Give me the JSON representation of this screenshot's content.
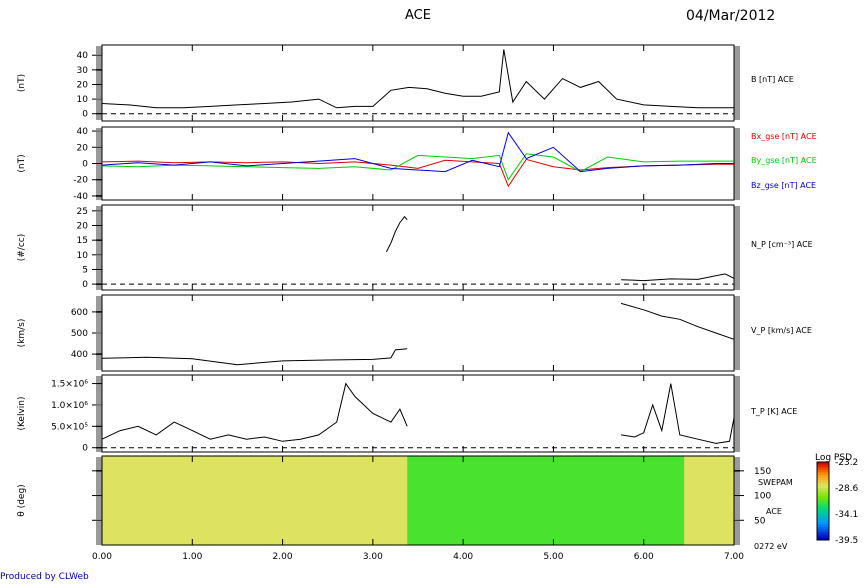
{
  "header": {
    "title": "ACE",
    "date": "04/Mar/2012"
  },
  "footer": {
    "credit": "Produced by CLWeb"
  },
  "chart_data": [
    {
      "type": "line",
      "ylabel": "(nT)",
      "ylim": [
        -5,
        47
      ],
      "yticks": [
        0,
        10,
        20,
        30,
        40
      ],
      "ytick_labels": [
        "0",
        "10",
        "20",
        "30",
        "40"
      ],
      "zero_line": true,
      "x": [
        0.0,
        0.3,
        0.6,
        0.9,
        1.2,
        1.5,
        1.8,
        2.1,
        2.4,
        2.6,
        2.8,
        3.0,
        3.2,
        3.4,
        3.6,
        3.8,
        4.0,
        4.2,
        4.4,
        4.45,
        4.55,
        4.7,
        4.9,
        5.1,
        5.3,
        5.5,
        5.7,
        6.0,
        6.3,
        6.6,
        6.9,
        7.0
      ],
      "series": [
        {
          "name": "B [nT] ACE",
          "color": "#000000",
          "values": [
            7,
            6,
            4,
            4,
            5,
            6,
            7,
            8,
            10,
            4,
            5,
            5,
            16,
            18,
            17,
            14,
            12,
            12,
            15,
            44,
            8,
            22,
            10,
            24,
            18,
            22,
            10,
            6,
            5,
            4,
            4,
            4
          ]
        }
      ]
    },
    {
      "type": "line",
      "ylabel": "(nT)",
      "ylim": [
        -45,
        45
      ],
      "yticks": [
        -40,
        -20,
        0,
        20,
        40
      ],
      "ytick_labels": [
        "-40",
        "-20",
        "0",
        "20",
        "40"
      ],
      "x": [
        0.0,
        0.4,
        0.8,
        1.2,
        1.6,
        2.0,
        2.4,
        2.8,
        3.2,
        3.5,
        3.8,
        4.1,
        4.4,
        4.5,
        4.7,
        5.0,
        5.3,
        5.6,
        6.0,
        6.4,
        6.8,
        7.0
      ],
      "series": [
        {
          "name": "Bx_gse [nT] ACE",
          "color": "#e00000",
          "values": [
            2,
            3,
            1,
            2,
            1,
            2,
            0,
            2,
            -2,
            -6,
            4,
            2,
            0,
            -28,
            5,
            -4,
            -8,
            -5,
            -3,
            -2,
            -1,
            -1
          ]
        },
        {
          "name": "By_gse [nT] ACE",
          "color": "#00cc00",
          "values": [
            -3,
            -4,
            -2,
            -3,
            -4,
            -5,
            -6,
            -4,
            -8,
            10,
            8,
            6,
            10,
            -20,
            12,
            8,
            -10,
            8,
            2,
            3,
            3,
            3
          ]
        },
        {
          "name": "Bz_gse [nT] ACE",
          "color": "#0000e0",
          "values": [
            -2,
            1,
            -2,
            2,
            -3,
            0,
            3,
            6,
            -6,
            -8,
            -10,
            4,
            -4,
            38,
            6,
            20,
            -10,
            -6,
            -3,
            -2,
            0,
            0
          ]
        }
      ]
    },
    {
      "type": "line",
      "ylabel": "(#/cc)",
      "ylim": [
        -2,
        27
      ],
      "yticks": [
        0,
        5,
        10,
        15,
        20,
        25
      ],
      "ytick_labels": [
        "0",
        "5",
        "10",
        "15",
        "20",
        "25"
      ],
      "zero_line": true,
      "segments": [
        {
          "x": [
            3.15,
            3.2,
            3.25,
            3.3,
            3.35,
            3.38
          ],
          "values": [
            11,
            14,
            18,
            21,
            23,
            22
          ]
        },
        {
          "x": [
            5.75,
            6.0,
            6.3,
            6.6,
            6.9,
            7.0
          ],
          "values": [
            1.5,
            1.2,
            1.8,
            1.6,
            3.5,
            2.0
          ]
        }
      ],
      "series": [
        {
          "name": "N_P [cm^-3] ACE",
          "color": "#000000"
        }
      ]
    },
    {
      "type": "line",
      "ylabel": "(km/s)",
      "ylim": [
        320,
        680
      ],
      "yticks": [
        400,
        500,
        600
      ],
      "ytick_labels": [
        "400",
        "500",
        "600"
      ],
      "segments": [
        {
          "x": [
            0.0,
            0.5,
            1.0,
            1.5,
            2.0,
            2.5,
            3.0,
            3.2,
            3.25,
            3.38
          ],
          "values": [
            380,
            385,
            378,
            350,
            368,
            372,
            375,
            382,
            420,
            425
          ]
        },
        {
          "x": [
            5.75,
            6.0,
            6.2,
            6.4,
            6.6,
            6.8,
            7.0
          ],
          "values": [
            640,
            610,
            580,
            565,
            530,
            500,
            470
          ]
        }
      ],
      "series": [
        {
          "name": "V_P [km/s] ACE",
          "color": "#000000"
        }
      ]
    },
    {
      "type": "line",
      "ylabel": "(Kelvin)",
      "ylim": [
        -0.1,
        1.7
      ],
      "yticks": [
        0,
        0.5,
        1.0,
        1.5
      ],
      "ytick_labels": [
        "0",
        "5.0×10⁵",
        "1.0×10⁶",
        "1.5×10⁶"
      ],
      "zero_line": true,
      "segments": [
        {
          "x": [
            0.0,
            0.2,
            0.4,
            0.6,
            0.8,
            1.0,
            1.2,
            1.4,
            1.6,
            1.8,
            2.0,
            2.2,
            2.4,
            2.6,
            2.7,
            2.8,
            3.0,
            3.2,
            3.3,
            3.38
          ],
          "values": [
            0.2,
            0.4,
            0.5,
            0.3,
            0.6,
            0.4,
            0.2,
            0.3,
            0.2,
            0.25,
            0.15,
            0.2,
            0.3,
            0.6,
            1.5,
            1.2,
            0.8,
            0.6,
            0.9,
            0.5
          ]
        },
        {
          "x": [
            5.75,
            5.9,
            6.0,
            6.1,
            6.2,
            6.3,
            6.4,
            6.6,
            6.8,
            6.95,
            7.0
          ],
          "values": [
            0.3,
            0.25,
            0.35,
            1.0,
            0.4,
            1.5,
            0.3,
            0.2,
            0.1,
            0.15,
            0.7
          ]
        }
      ],
      "series": [
        {
          "name": "T_P [K] ACE",
          "color": "#000000"
        }
      ]
    },
    {
      "type": "heatmap",
      "ylabel": "θ (deg)",
      "ylim": [
        0,
        180
      ],
      "yticks": [
        50,
        100,
        150
      ],
      "ytick_labels": [
        "50",
        "100",
        "150"
      ],
      "bottom_label": "0272 eV",
      "instrument": "SWEPAM",
      "spacecraft": "ACE",
      "blocks": [
        {
          "x": [
            0.0,
            3.38
          ],
          "value": -28.0
        },
        {
          "x": [
            3.38,
            6.45
          ],
          "value": -31.5
        },
        {
          "x": [
            6.45,
            7.0
          ],
          "value": -28.0
        }
      ],
      "colorbar": {
        "label": "Log PSD",
        "range": [
          -39.5,
          -23.2
        ],
        "ticks": [
          "-23.2",
          "-28.6",
          "-34.1",
          "-39.5"
        ]
      }
    }
  ],
  "x_axis": {
    "range": [
      0.0,
      7.0
    ],
    "ticks": [
      "0.00",
      "1.00",
      "2.00",
      "3.00",
      "4.00",
      "5.00",
      "6.00",
      "7.00"
    ]
  },
  "legend_labels": {
    "b": "B [nT] ACE",
    "bx": "Bx_gse [nT] ACE",
    "by": "By_gse [nT] ACE",
    "bz": "Bz_gse [nT] ACE",
    "np": "N_P [cm⁻³] ACE",
    "vp": "V_P [km/s] ACE",
    "tp": "T_P [K] ACE"
  }
}
